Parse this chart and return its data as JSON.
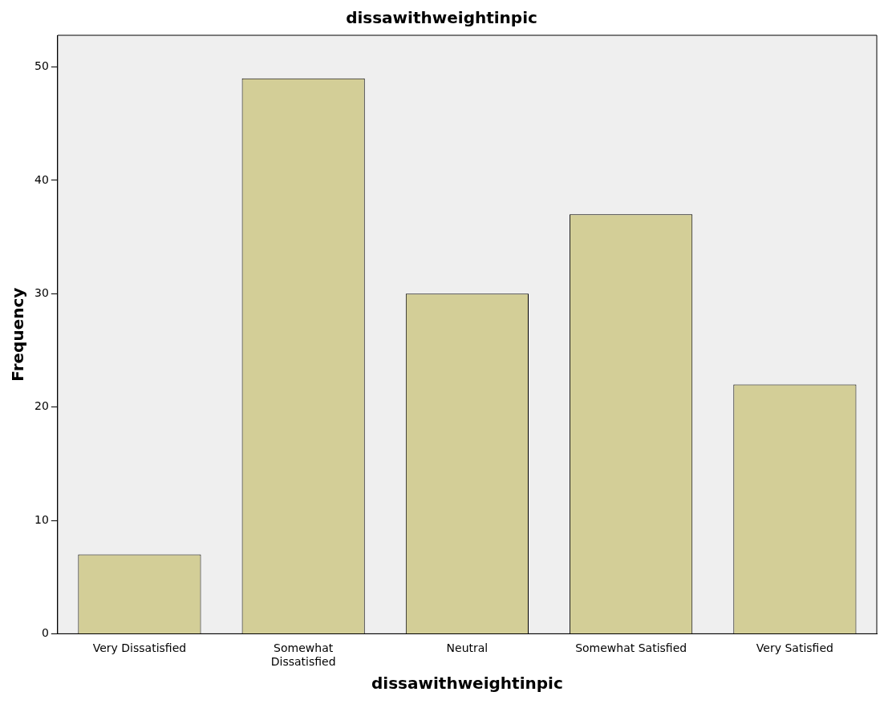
{
  "chart_data": {
    "type": "bar",
    "title": "dissawithweightinpic",
    "xlabel": "dissawithweightinpic",
    "ylabel": "Frequency",
    "categories": [
      "Very Dissatisfied",
      "Somewhat Dissatisfied",
      "Neutral",
      "Somewhat Satisfied",
      "Very Satisfied"
    ],
    "values": [
      7,
      49,
      30,
      37,
      22
    ],
    "color": "#d3ce97",
    "ylim": [
      0,
      52.8
    ],
    "yticks": [
      0,
      10,
      20,
      30,
      40,
      50
    ],
    "grid": false,
    "legend": false
  }
}
